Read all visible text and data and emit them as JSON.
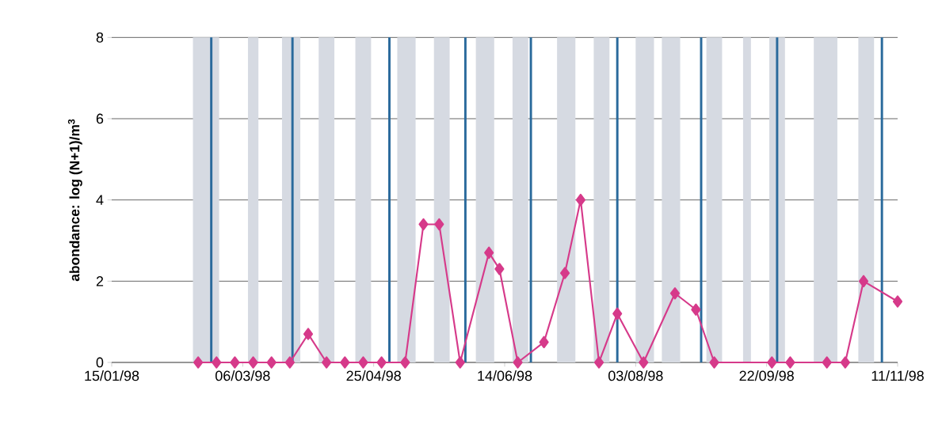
{
  "chart_data": {
    "type": "line",
    "ylabel": "abondance: log (N+1)/m$^{3}$",
    "x": [
      "1998-02-17",
      "1998-02-24",
      "1998-03-03",
      "1998-03-10",
      "1998-03-17",
      "1998-03-24",
      "1998-03-31",
      "1998-04-07",
      "1998-04-14",
      "1998-04-21",
      "1998-04-28",
      "1998-05-07",
      "1998-05-14",
      "1998-05-20",
      "1998-05-28",
      "1998-06-08",
      "1998-06-12",
      "1998-06-19",
      "1998-06-29",
      "1998-07-07",
      "1998-07-13",
      "1998-07-20",
      "1998-07-27",
      "1998-08-06",
      "1998-08-18",
      "1998-08-26",
      "1998-09-02",
      "1998-09-24",
      "1998-10-01",
      "1998-10-15",
      "1998-10-22",
      "1998-10-29",
      "1998-11-11"
    ],
    "series": [
      {
        "color": "#d63a8a",
        "values": [
          0,
          0,
          0,
          0,
          0,
          0,
          0.7,
          0,
          0,
          0,
          0,
          0,
          3.4,
          3.4,
          0,
          2.7,
          2.3,
          0,
          0.5,
          2.2,
          4.0,
          0,
          1.2,
          0,
          1.7,
          1.3,
          0,
          0,
          0,
          0,
          0,
          2.0,
          1.5
        ]
      }
    ],
    "xlim": [
      "1998-01-15",
      "1998-11-11"
    ],
    "xticks": [
      {
        "value": "1998-01-15",
        "label": "15/01/98"
      },
      {
        "value": "1998-03-06",
        "label": "06/03/98"
      },
      {
        "value": "1998-04-25",
        "label": "25/04/98"
      },
      {
        "value": "1998-06-14",
        "label": "14/06/98"
      },
      {
        "value": "1998-08-03",
        "label": "03/08/98"
      },
      {
        "value": "1998-09-22",
        "label": "22/09/98"
      },
      {
        "value": "1998-11-11",
        "label": "11/11/98"
      }
    ],
    "ylim": [
      0,
      8
    ],
    "yticks": [
      0,
      2,
      4,
      6,
      8
    ],
    "grid": "y",
    "marker": "diamond",
    "line_style": "solid",
    "ref_lines": [
      {
        "axis": "x",
        "value": "1998-02-22",
        "color": "#2a6a9c"
      },
      {
        "axis": "x",
        "value": "1998-03-25",
        "color": "#2a6a9c"
      },
      {
        "axis": "x",
        "value": "1998-05-01",
        "color": "#2a6a9c"
      },
      {
        "axis": "x",
        "value": "1998-05-30",
        "color": "#2a6a9c"
      },
      {
        "axis": "x",
        "value": "1998-06-24",
        "color": "#2a6a9c"
      },
      {
        "axis": "x",
        "value": "1998-07-27",
        "color": "#2a6a9c"
      },
      {
        "axis": "x",
        "value": "1998-08-28",
        "color": "#2a6a9c"
      },
      {
        "axis": "x",
        "value": "1998-09-26",
        "color": "#2a6a9c"
      },
      {
        "axis": "x",
        "value": "1998-11-05",
        "color": "#2a6a9c"
      }
    ],
    "bands": [
      {
        "axis": "x",
        "from": "1998-02-15",
        "to": "1998-02-25",
        "color": "#d6dae2"
      },
      {
        "axis": "x",
        "from": "1998-03-08",
        "to": "1998-03-12",
        "color": "#d6dae2"
      },
      {
        "axis": "x",
        "from": "1998-03-21",
        "to": "1998-03-28",
        "color": "#d6dae2"
      },
      {
        "axis": "x",
        "from": "1998-04-04",
        "to": "1998-04-10",
        "color": "#d6dae2"
      },
      {
        "axis": "x",
        "from": "1998-04-18",
        "to": "1998-04-24",
        "color": "#d6dae2"
      },
      {
        "axis": "x",
        "from": "1998-05-04",
        "to": "1998-05-11",
        "color": "#d6dae2"
      },
      {
        "axis": "x",
        "from": "1998-05-18",
        "to": "1998-05-24",
        "color": "#d6dae2"
      },
      {
        "axis": "x",
        "from": "1998-06-03",
        "to": "1998-06-10",
        "color": "#d6dae2"
      },
      {
        "axis": "x",
        "from": "1998-06-17",
        "to": "1998-06-23",
        "color": "#d6dae2"
      },
      {
        "axis": "x",
        "from": "1998-07-04",
        "to": "1998-07-11",
        "color": "#d6dae2"
      },
      {
        "axis": "x",
        "from": "1998-07-18",
        "to": "1998-07-24",
        "color": "#d6dae2"
      },
      {
        "axis": "x",
        "from": "1998-08-03",
        "to": "1998-08-10",
        "color": "#d6dae2"
      },
      {
        "axis": "x",
        "from": "1998-08-13",
        "to": "1998-08-20",
        "color": "#d6dae2"
      },
      {
        "axis": "x",
        "from": "1998-08-30",
        "to": "1998-09-05",
        "color": "#d6dae2"
      },
      {
        "axis": "x",
        "from": "1998-09-13",
        "to": "1998-09-16",
        "color": "#d6dae2"
      },
      {
        "axis": "x",
        "from": "1998-09-23",
        "to": "1998-09-29",
        "color": "#d6dae2"
      },
      {
        "axis": "x",
        "from": "1998-10-10",
        "to": "1998-10-19",
        "color": "#d6dae2"
      },
      {
        "axis": "x",
        "from": "1998-10-27",
        "to": "1998-11-02",
        "color": "#d6dae2"
      }
    ]
  }
}
